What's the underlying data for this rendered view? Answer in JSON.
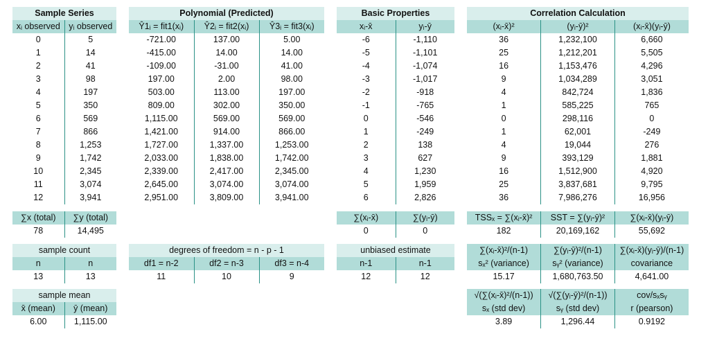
{
  "sample_series": {
    "title": "Sample Series",
    "headers": [
      "xᵢ observed",
      "yᵢ observed"
    ],
    "rows": [
      [
        "0",
        "5"
      ],
      [
        "1",
        "14"
      ],
      [
        "2",
        "41"
      ],
      [
        "3",
        "98"
      ],
      [
        "4",
        "197"
      ],
      [
        "5",
        "350"
      ],
      [
        "6",
        "569"
      ],
      [
        "7",
        "866"
      ],
      [
        "8",
        "1,253"
      ],
      [
        "9",
        "1,742"
      ],
      [
        "10",
        "2,345"
      ],
      [
        "11",
        "3,074"
      ],
      [
        "12",
        "3,941"
      ]
    ]
  },
  "polynomial": {
    "title": "Polynomial (Predicted)",
    "headers": [
      "Ŷ1ᵢ = fit1(xᵢ)",
      "Ŷ2ᵢ = fit2(xᵢ)",
      "Ŷ3ᵢ = fit3(xᵢ)"
    ],
    "rows": [
      [
        "-721.00",
        "137.00",
        "5.00"
      ],
      [
        "-415.00",
        "14.00",
        "14.00"
      ],
      [
        "-109.00",
        "-31.00",
        "41.00"
      ],
      [
        "197.00",
        "2.00",
        "98.00"
      ],
      [
        "503.00",
        "113.00",
        "197.00"
      ],
      [
        "809.00",
        "302.00",
        "350.00"
      ],
      [
        "1,115.00",
        "569.00",
        "569.00"
      ],
      [
        "1,421.00",
        "914.00",
        "866.00"
      ],
      [
        "1,727.00",
        "1,337.00",
        "1,253.00"
      ],
      [
        "2,033.00",
        "1,838.00",
        "1,742.00"
      ],
      [
        "2,339.00",
        "2,417.00",
        "2,345.00"
      ],
      [
        "2,645.00",
        "3,074.00",
        "3,074.00"
      ],
      [
        "2,951.00",
        "3,809.00",
        "3,941.00"
      ]
    ]
  },
  "basic": {
    "title": "Basic Properties",
    "headers": [
      "xᵢ-x̄",
      "yᵢ-ȳ"
    ],
    "rows": [
      [
        "-6",
        "-1,110"
      ],
      [
        "-5",
        "-1,101"
      ],
      [
        "-4",
        "-1,074"
      ],
      [
        "-3",
        "-1,017"
      ],
      [
        "-2",
        "-918"
      ],
      [
        "-1",
        "-765"
      ],
      [
        "0",
        "-546"
      ],
      [
        "1",
        "-249"
      ],
      [
        "2",
        "138"
      ],
      [
        "3",
        "627"
      ],
      [
        "4",
        "1,230"
      ],
      [
        "5",
        "1,959"
      ],
      [
        "6",
        "2,826"
      ]
    ]
  },
  "correlation": {
    "title": "Correlation Calculation",
    "headers": [
      "(xᵢ-x̄)²",
      "(yᵢ-ȳ)²",
      "(xᵢ-x̄)(yᵢ-ȳ)"
    ],
    "rows": [
      [
        "36",
        "1,232,100",
        "6,660"
      ],
      [
        "25",
        "1,212,201",
        "5,505"
      ],
      [
        "16",
        "1,153,476",
        "4,296"
      ],
      [
        "9",
        "1,034,289",
        "3,051"
      ],
      [
        "4",
        "842,724",
        "1,836"
      ],
      [
        "1",
        "585,225",
        "765"
      ],
      [
        "0",
        "298,116",
        "0"
      ],
      [
        "1",
        "62,001",
        "-249"
      ],
      [
        "4",
        "19,044",
        "276"
      ],
      [
        "9",
        "393,129",
        "1,881"
      ],
      [
        "16",
        "1,512,900",
        "4,920"
      ],
      [
        "25",
        "3,837,681",
        "9,795"
      ],
      [
        "36",
        "7,986,276",
        "16,956"
      ]
    ]
  },
  "totals": {
    "sample": {
      "labels": [
        "∑x (total)",
        "∑y (total)"
      ],
      "values": [
        "78",
        "14,495"
      ]
    },
    "basic": {
      "labels": [
        "∑(xᵢ-x̄)",
        "∑(yᵢ-ȳ)"
      ],
      "values": [
        "0",
        "0"
      ]
    },
    "corr": {
      "labels": [
        "TSSₓ = ∑(xᵢ-x̄)²",
        "SST = ∑(yᵢ-ȳ)²",
        "∑(xᵢ-x̄)(yᵢ-ȳ)"
      ],
      "values": [
        "182",
        "20,169,162",
        "55,692"
      ]
    }
  },
  "counts": {
    "sample": {
      "title": "sample count",
      "labels": [
        "n",
        "n"
      ],
      "values": [
        "13",
        "13"
      ]
    },
    "dof": {
      "title": "degrees of freedom = n - p - 1",
      "labels": [
        "df1 =  n-2",
        "df2 =  n-3",
        "df3 =  n-4"
      ],
      "values": [
        "11",
        "10",
        "9"
      ]
    },
    "unbiased": {
      "title": "unbiased estimate",
      "labels": [
        "n-1",
        "n-1"
      ],
      "values": [
        "12",
        "12"
      ]
    },
    "variance": {
      "header1": [
        "∑(xᵢ-x̄)²/(n-1)",
        "∑(yᵢ-ȳ)²/(n-1)",
        "∑(xᵢ-x̄)(yᵢ-ȳ)/(n-1)"
      ],
      "header2": [
        "sₓ² (variance)",
        "sᵧ² (variance)",
        "covariance"
      ],
      "values": [
        "15.17",
        "1,680,763.50",
        "4,641.00"
      ]
    }
  },
  "means": {
    "sample": {
      "title": "sample mean",
      "labels": [
        "x̄ (mean)",
        "ȳ (mean)"
      ],
      "values": [
        "6.00",
        "1,115.00"
      ]
    },
    "stddev": {
      "header1": [
        "√(∑(xᵢ-x̄)²/(n-1))",
        "√(∑(yᵢ-ȳ)²/(n-1))",
        "cov/sₓsᵧ"
      ],
      "header2": [
        "sₓ (std dev)",
        "sᵧ (std dev)",
        "r (pearson)"
      ],
      "values": [
        "3.89",
        "1,296.44",
        "0.9192"
      ]
    }
  }
}
